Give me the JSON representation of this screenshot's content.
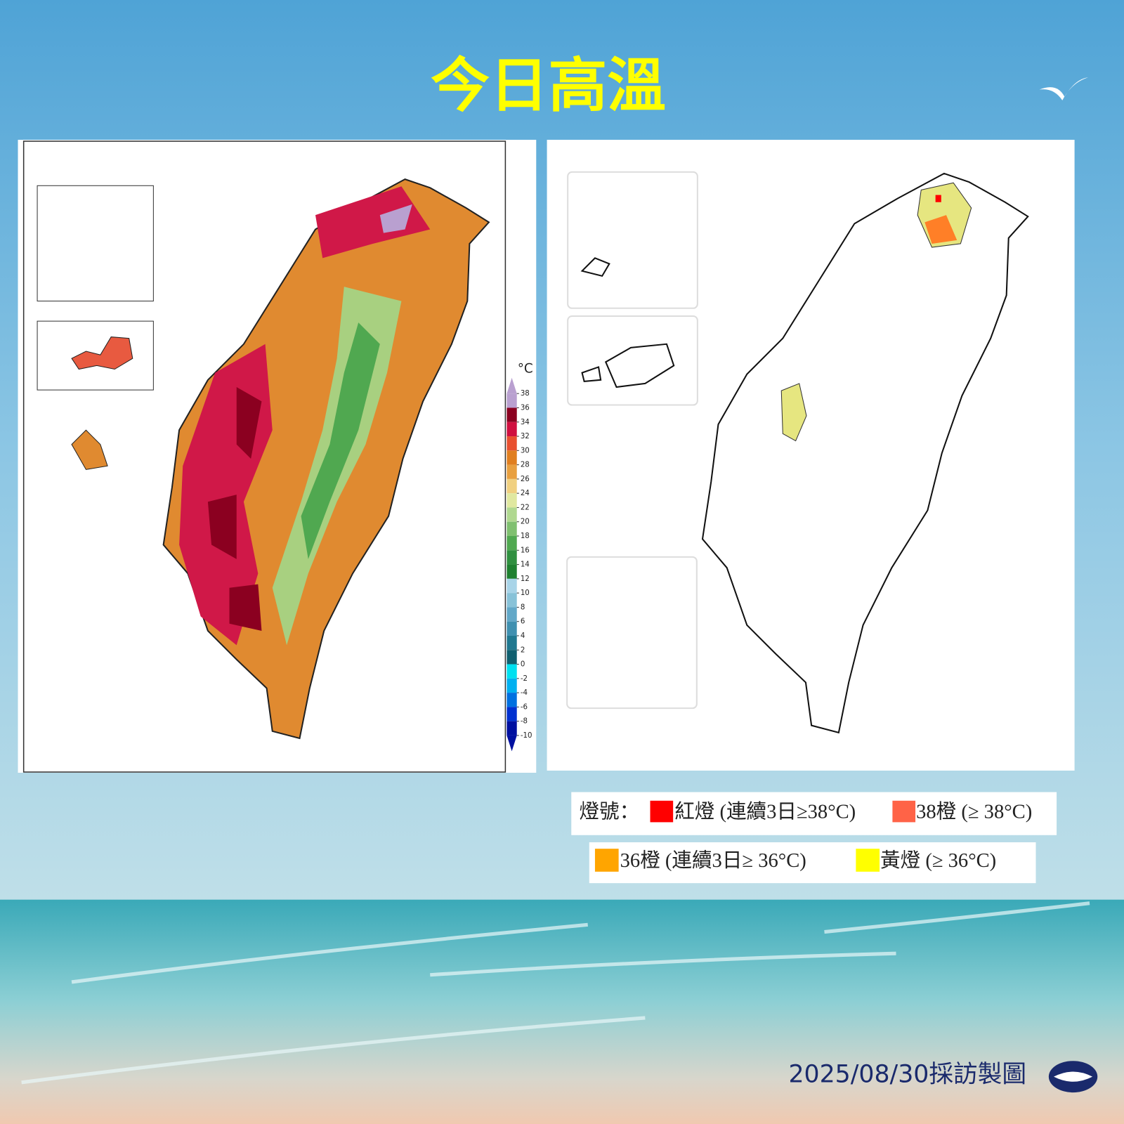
{
  "title": "今日高溫",
  "left_map": {
    "colorbar": {
      "unit": "°C",
      "lim": [
        -10,
        38
      ],
      "ticks": [
        38,
        36,
        34,
        32,
        30,
        28,
        26,
        24,
        22,
        20,
        18,
        16,
        14,
        12,
        10,
        8,
        6,
        4,
        2,
        0,
        -2,
        -4,
        -6,
        -8,
        -10
      ],
      "colors": [
        "#b9a0d0",
        "#8b0020",
        "#d01040",
        "#e85030",
        "#e07f20",
        "#e8a040",
        "#f0d080",
        "#e0e8a0",
        "#b0d890",
        "#80c070",
        "#50a850",
        "#309040",
        "#1f8030",
        "#a8d4e8",
        "#88c2d8",
        "#62a8c8",
        "#4090b0",
        "#207890",
        "#106070",
        "#00e0f0",
        "#00b0f0",
        "#0070e0",
        "#0030d0",
        "#0010a0"
      ]
    }
  },
  "legend": {
    "prefix": "燈號：",
    "items": [
      {
        "label": "紅燈 (連續3日≥38°C)",
        "color": "#ff0000"
      },
      {
        "label": "38橙 (≥ 38°C)",
        "color": "#ff6347"
      },
      {
        "label": "36橙 (連續3日≥ 36°C)",
        "color": "#ffa500"
      },
      {
        "label": "黃燈 (≥ 36°C)",
        "color": "#ffff00"
      }
    ]
  },
  "footer": "2025/08/30採訪製圖"
}
